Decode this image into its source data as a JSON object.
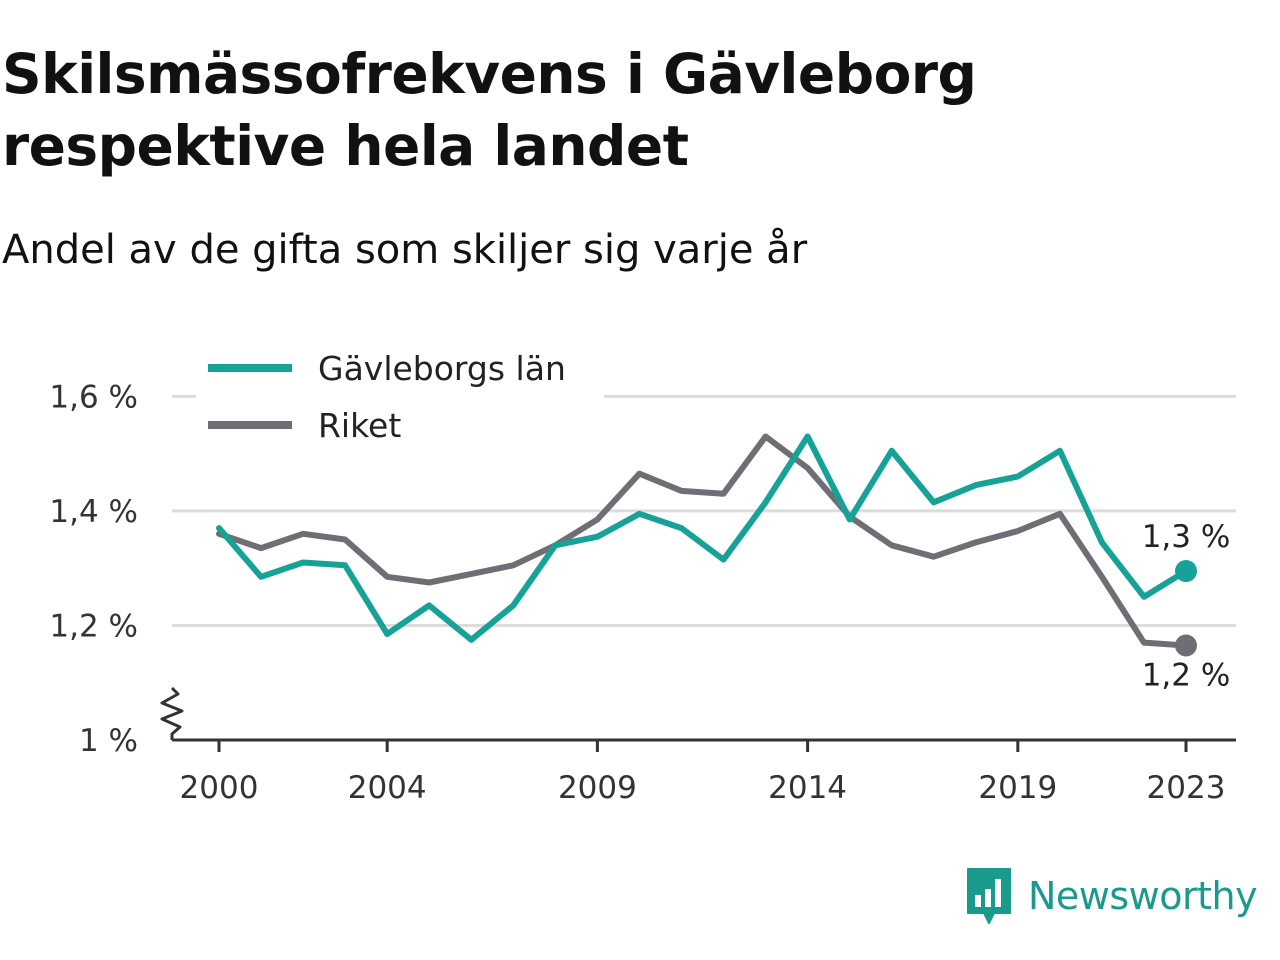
{
  "header": {
    "title": "Skilsmässofrekvens i Gävleborg respektive hela landet",
    "subtitle": "Andel av de gifta som skiljer sig varje år"
  },
  "brand": {
    "logo_text": "Newsworthy",
    "logo_icon": "bar-chart-speech-bubble-icon",
    "color": "#1a9a8c"
  },
  "chart_data": {
    "type": "line",
    "x": [
      2000,
      2001,
      2002,
      2003,
      2004,
      2005,
      2006,
      2007,
      2008,
      2009,
      2010,
      2011,
      2012,
      2013,
      2014,
      2015,
      2016,
      2017,
      2018,
      2019,
      2020,
      2021,
      2022,
      2023
    ],
    "x_tick_labels": [
      "2000",
      "2004",
      "2009",
      "2014",
      "2019",
      "2023"
    ],
    "x_tick_values": [
      2000,
      2004,
      2009,
      2014,
      2019,
      2023
    ],
    "y_tick_labels": [
      "1 %",
      "1,2 %",
      "1,4 %",
      "1,6 %"
    ],
    "y_tick_values": [
      1.0,
      1.2,
      1.4,
      1.6
    ],
    "ylim": [
      1.0,
      1.66
    ],
    "y_axis_break": true,
    "grid": "horizontal",
    "legend_position": "top-left",
    "series": [
      {
        "name": "Gävleborgs län",
        "color": "#16a296",
        "values": [
          1.37,
          1.285,
          1.31,
          1.305,
          1.185,
          1.235,
          1.175,
          1.235,
          1.34,
          1.355,
          1.395,
          1.37,
          1.315,
          1.415,
          1.53,
          1.385,
          1.505,
          1.415,
          1.445,
          1.46,
          1.505,
          1.345,
          1.25,
          1.295
        ],
        "end_label": "1,3 %"
      },
      {
        "name": "Riket",
        "color": "#6f6e75",
        "values": [
          1.36,
          1.335,
          1.36,
          1.35,
          1.285,
          1.275,
          1.29,
          1.305,
          1.34,
          1.385,
          1.465,
          1.435,
          1.43,
          1.53,
          1.475,
          1.39,
          1.34,
          1.32,
          1.345,
          1.365,
          1.395,
          1.285,
          1.17,
          1.165
        ],
        "end_label": "1,2 %"
      }
    ]
  }
}
